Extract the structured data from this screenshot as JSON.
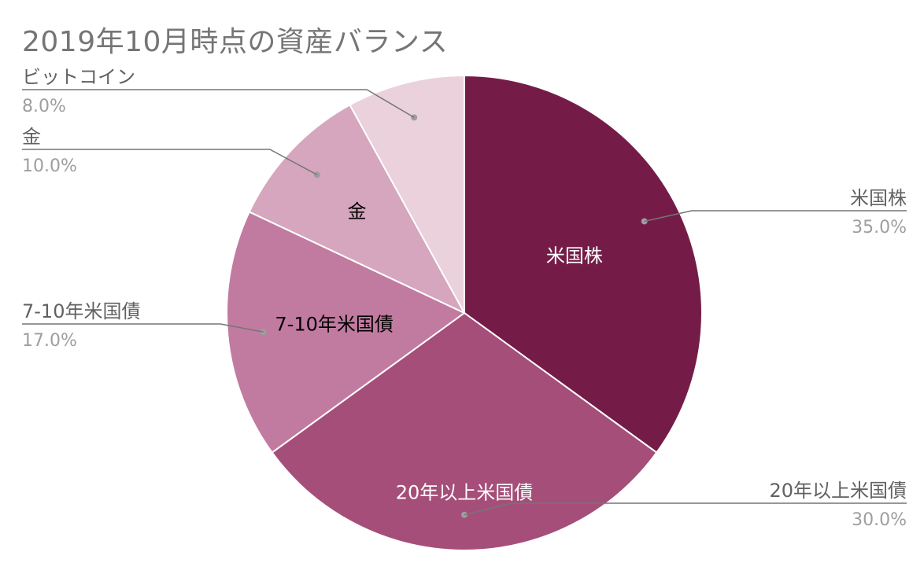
{
  "chart_data": {
    "type": "pie",
    "title": "2019年10月時点の資産バランス",
    "slices": [
      {
        "label": "米国株",
        "value": 35.0,
        "percent_label": "35.0%",
        "color": "#741c47",
        "inner_label_color": "#ffffff",
        "callout_side": "right"
      },
      {
        "label": "20年以上米国債",
        "value": 30.0,
        "percent_label": "30.0%",
        "color": "#a54e79",
        "inner_label_color": "#ffffff",
        "callout_side": "right"
      },
      {
        "label": "7-10年米国債",
        "value": 17.0,
        "percent_label": "17.0%",
        "color": "#c27ba0",
        "inner_label_color": "#000000",
        "callout_side": "left"
      },
      {
        "label": "金",
        "value": 10.0,
        "percent_label": "10.0%",
        "color": "#d5a6bd",
        "inner_label_color": "#000000",
        "callout_side": "left"
      },
      {
        "label": "ビットコイン",
        "value": 8.0,
        "percent_label": "8.0%",
        "color": "#ead1dc",
        "inner_label_color": "",
        "callout_side": "left"
      }
    ],
    "legend": "callouts"
  },
  "colors": {
    "title": "#757575",
    "callout_label": "#616161",
    "callout_percent": "#9e9e9e",
    "leader_line": "#757575",
    "slice_border": "#ffffff"
  }
}
